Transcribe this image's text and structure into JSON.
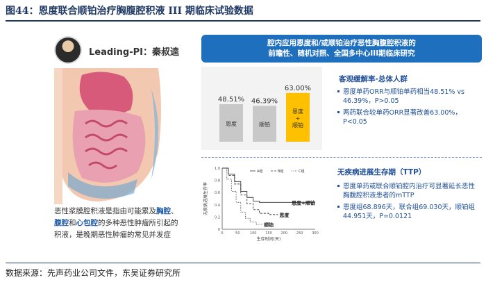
{
  "header": {
    "title": "图44：恩度联合顺铂治疗胸腹腔积液 III 期临床试验数据"
  },
  "pi": {
    "label": "Leading-PI：秦叔逵"
  },
  "description": {
    "line1": "恶性浆膜腔积液是指由可能累及",
    "hl1": "胸腔",
    "sep1": "、",
    "hl2": "腹腔",
    "sep2": "和",
    "hl3": "心包腔",
    "line2": "的多种恶性肿瘤所引起的积液，是晚期恶性肿瘤的常见并发症"
  },
  "banner": {
    "line1": "腔内应用恩度和/或顺铂治疗恶性胸腹腔积液的",
    "line2": "前瞻性、随机对照、全国多中心III期临床研究"
  },
  "orr": {
    "title": "客观缓解率-总体人群",
    "bullet1": "恩度单药ORR与顺铂单药相当48.51% vs 46.39%，P>0.05",
    "bullet2": "两药联合较单药ORR显著改善63.00%，P<0.05"
  },
  "pfs": {
    "title": "无疾病进展生存期（TTP）",
    "bullet1": "恩度单药或联合顺铂腔内治疗可显著延长恶性胸腹腔积液患者的mTTP",
    "bullet2": "恩度组68.896天，联合组69.030天，顺铂组44.951天，P=0.0121"
  },
  "chart_data": [
    {
      "type": "bar",
      "categories": [
        "恩度",
        "顺铂",
        "恩度+顺铂"
      ],
      "values": [
        48.51,
        46.39,
        63.0
      ],
      "value_labels": [
        "48.51%",
        "46.39%",
        "63.00%"
      ],
      "ylim": [
        0,
        70
      ],
      "colors": [
        "#c8c8c8",
        "#c8c8c8",
        "#ffc000"
      ]
    },
    {
      "type": "line",
      "xlabel": "生存时间(天)",
      "ylabel": "无疾病进展生存率",
      "legend": [
        "A组",
        "B组",
        "C组"
      ],
      "labels": [
        "恩度+顺铂",
        "恩度",
        "顺铂"
      ],
      "ylim": [
        0,
        1
      ],
      "xlim": [
        0,
        300
      ],
      "x_ticks": [
        0,
        50,
        100,
        150,
        200,
        250,
        300
      ],
      "y_ticks": [
        0,
        0.2,
        0.4,
        0.6,
        0.8,
        1.0
      ],
      "y_tick_labels": [
        "0",
        "0.2",
        "0.4",
        "0.6",
        "0.8",
        "1.0"
      ],
      "series": [
        {
          "name": "恩度+顺铂",
          "x": [
            0,
            20,
            40,
            60,
            80,
            100,
            120,
            150,
            200,
            250,
            300
          ],
          "y": [
            1.0,
            0.9,
            0.78,
            0.62,
            0.52,
            0.46,
            0.44,
            0.44,
            0.44,
            0.44,
            0.44
          ]
        },
        {
          "name": "恩度",
          "x": [
            0,
            20,
            40,
            60,
            80,
            100,
            120,
            150,
            180
          ],
          "y": [
            1.0,
            0.88,
            0.74,
            0.56,
            0.42,
            0.32,
            0.26,
            0.24,
            0.24
          ]
        },
        {
          "name": "顺铂",
          "x": [
            0,
            15,
            30,
            45,
            60,
            75,
            90,
            110,
            130
          ],
          "y": [
            1.0,
            0.82,
            0.62,
            0.44,
            0.28,
            0.18,
            0.12,
            0.08,
            0.08
          ]
        }
      ]
    }
  ]
}
